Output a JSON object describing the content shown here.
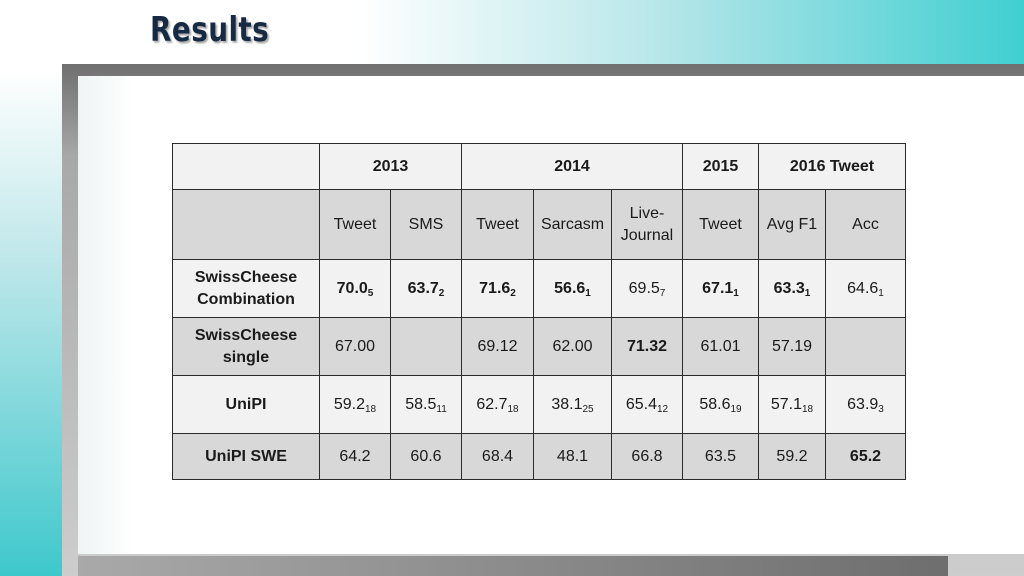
{
  "slide": {
    "title": "Results"
  },
  "table": {
    "years": [
      "2013",
      "2014",
      "2015",
      "2016 Tweet"
    ],
    "subheaders": [
      "Tweet",
      "SMS",
      "Tweet",
      "Sarcasm",
      "Live-\nJournal",
      "Tweet",
      "Avg F1",
      "Acc"
    ],
    "rows": [
      {
        "label": "SwissCheese\nCombination",
        "cells": [
          {
            "v": "70.0",
            "r": "5",
            "bold": true
          },
          {
            "v": "63.7",
            "r": "2",
            "bold": true
          },
          {
            "v": "71.6",
            "r": "2",
            "bold": true
          },
          {
            "v": "56.6",
            "r": "1",
            "bold": true
          },
          {
            "v": "69.5",
            "r": "7",
            "bold": false
          },
          {
            "v": "67.1",
            "r": "1",
            "bold": true
          },
          {
            "v": "63.3",
            "r": "1",
            "bold": true
          },
          {
            "v": "64.6",
            "r": "1",
            "bold": false
          }
        ]
      },
      {
        "label": "SwissCheese\nsingle",
        "cells": [
          {
            "v": "67.00",
            "r": "",
            "bold": false
          },
          {
            "v": "",
            "r": "",
            "bold": false
          },
          {
            "v": "69.12",
            "r": "",
            "bold": false
          },
          {
            "v": "62.00",
            "r": "",
            "bold": false
          },
          {
            "v": "71.32",
            "r": "",
            "bold": true
          },
          {
            "v": "61.01",
            "r": "",
            "bold": false
          },
          {
            "v": "57.19",
            "r": "",
            "bold": false
          },
          {
            "v": "",
            "r": "",
            "bold": false
          }
        ]
      },
      {
        "label": "UniPI",
        "cells": [
          {
            "v": "59.2",
            "r": "18",
            "bold": false
          },
          {
            "v": "58.5",
            "r": "11",
            "bold": false
          },
          {
            "v": "62.7",
            "r": "18",
            "bold": false
          },
          {
            "v": "38.1",
            "r": "25",
            "bold": false
          },
          {
            "v": "65.4",
            "r": "12",
            "bold": false
          },
          {
            "v": "58.6",
            "r": "19",
            "bold": false
          },
          {
            "v": "57.1",
            "r": "18",
            "bold": false
          },
          {
            "v": "63.9",
            "r": "3",
            "bold": false
          }
        ]
      },
      {
        "label": "UniPI SWE",
        "cells": [
          {
            "v": "64.2",
            "r": "",
            "bold": false
          },
          {
            "v": "60.6",
            "r": "",
            "bold": false
          },
          {
            "v": "68.4",
            "r": "",
            "bold": false
          },
          {
            "v": "48.1",
            "r": "",
            "bold": false
          },
          {
            "v": "66.8",
            "r": "",
            "bold": false
          },
          {
            "v": "63.5",
            "r": "",
            "bold": false
          },
          {
            "v": "59.2",
            "r": "",
            "bold": false
          },
          {
            "v": "65.2",
            "r": "",
            "bold": true
          }
        ]
      }
    ]
  }
}
